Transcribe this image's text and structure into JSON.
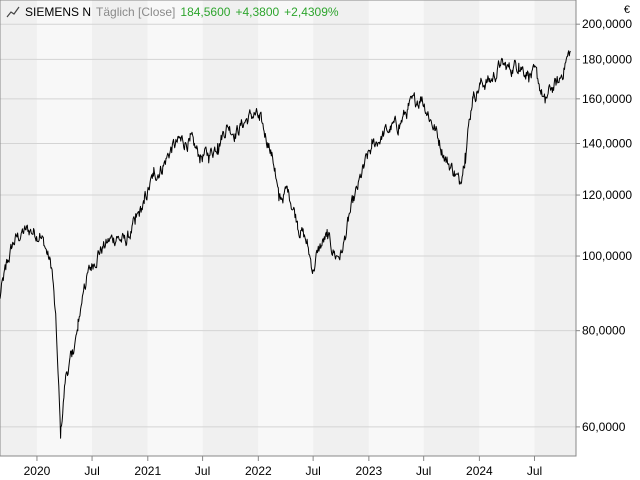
{
  "header": {
    "icon": "line-chart-icon",
    "instrument": "SIEMENS N",
    "interval": "Täglich [Close]",
    "last": "184,5600",
    "change": "+4,3800",
    "change_pct": "+2,4309%",
    "positive_color": "#2ea52e"
  },
  "currency": "€",
  "chart_data": {
    "type": "line",
    "title": "SIEMENS N",
    "subtitle": "Täglich [Close]",
    "y_scale": "log",
    "ylim": [
      55,
      215
    ],
    "xlim": [
      "2019-09-01",
      "2024-11-15"
    ],
    "grid": true,
    "y_ticks": [
      {
        "value": 60,
        "label": "60,0000"
      },
      {
        "value": 80,
        "label": "80,0000"
      },
      {
        "value": 100,
        "label": "100,0000"
      },
      {
        "value": 120,
        "label": "120,0000"
      },
      {
        "value": 140,
        "label": "140,0000"
      },
      {
        "value": 160,
        "label": "160,0000"
      },
      {
        "value": 180,
        "label": "180,0000"
      },
      {
        "value": 200,
        "label": "200,0000"
      }
    ],
    "x_ticks": [
      {
        "date": "2020-01-01",
        "label": "2020"
      },
      {
        "date": "2020-07-01",
        "label": "Jul"
      },
      {
        "date": "2021-01-01",
        "label": "2021"
      },
      {
        "date": "2021-07-01",
        "label": "Jul"
      },
      {
        "date": "2022-01-01",
        "label": "2022"
      },
      {
        "date": "2022-07-01",
        "label": "Jul"
      },
      {
        "date": "2023-01-01",
        "label": "2023"
      },
      {
        "date": "2023-07-01",
        "label": "Jul"
      },
      {
        "date": "2024-01-01",
        "label": "2024"
      },
      {
        "date": "2024-07-01",
        "label": "Jul"
      }
    ],
    "series": [
      {
        "color": "#000000",
        "points": [
          [
            "2019-09-01",
            88
          ],
          [
            "2019-09-20",
            96
          ],
          [
            "2019-10-15",
            104
          ],
          [
            "2019-11-10",
            107
          ],
          [
            "2019-12-10",
            108
          ],
          [
            "2020-01-10",
            107
          ],
          [
            "2020-02-01",
            102
          ],
          [
            "2020-02-20",
            96
          ],
          [
            "2020-03-05",
            80
          ],
          [
            "2020-03-19",
            58
          ],
          [
            "2020-04-05",
            70
          ],
          [
            "2020-04-25",
            74
          ],
          [
            "2020-05-15",
            80
          ],
          [
            "2020-06-05",
            92
          ],
          [
            "2020-06-25",
            96
          ],
          [
            "2020-07-20",
            101
          ],
          [
            "2020-08-20",
            104
          ],
          [
            "2020-09-20",
            106
          ],
          [
            "2020-10-20",
            104
          ],
          [
            "2020-11-20",
            110
          ],
          [
            "2020-12-20",
            117
          ],
          [
            "2021-01-20",
            127
          ],
          [
            "2021-02-20",
            131
          ],
          [
            "2021-03-20",
            138
          ],
          [
            "2021-04-20",
            141
          ],
          [
            "2021-05-20",
            141
          ],
          [
            "2021-06-20",
            135
          ],
          [
            "2021-07-20",
            135
          ],
          [
            "2021-08-20",
            140
          ],
          [
            "2021-09-20",
            148
          ],
          [
            "2021-10-20",
            145
          ],
          [
            "2021-11-20",
            150
          ],
          [
            "2021-12-20",
            153
          ],
          [
            "2022-01-05",
            150
          ],
          [
            "2022-02-05",
            140
          ],
          [
            "2022-02-25",
            130
          ],
          [
            "2022-03-10",
            118
          ],
          [
            "2022-04-10",
            122
          ],
          [
            "2022-05-10",
            111
          ],
          [
            "2022-06-10",
            104
          ],
          [
            "2022-07-01",
            96
          ],
          [
            "2022-07-15",
            101
          ],
          [
            "2022-08-15",
            106
          ],
          [
            "2022-09-15",
            100
          ],
          [
            "2022-10-05",
            101
          ],
          [
            "2022-10-25",
            111
          ],
          [
            "2022-11-25",
            122
          ],
          [
            "2022-12-15",
            130
          ],
          [
            "2023-01-10",
            138
          ],
          [
            "2023-02-10",
            143
          ],
          [
            "2023-03-10",
            146
          ],
          [
            "2023-04-10",
            148
          ],
          [
            "2023-05-10",
            155
          ],
          [
            "2023-06-10",
            159
          ],
          [
            "2023-06-25",
            161
          ],
          [
            "2023-07-15",
            154
          ],
          [
            "2023-08-15",
            144
          ],
          [
            "2023-09-15",
            133
          ],
          [
            "2023-10-10",
            129
          ],
          [
            "2023-10-27",
            124
          ],
          [
            "2023-11-15",
            136
          ],
          [
            "2023-12-10",
            161
          ],
          [
            "2024-01-10",
            168
          ],
          [
            "2024-02-10",
            169
          ],
          [
            "2024-03-10",
            177
          ],
          [
            "2024-04-10",
            175
          ],
          [
            "2024-05-10",
            178
          ],
          [
            "2024-06-10",
            173
          ],
          [
            "2024-07-10",
            170
          ],
          [
            "2024-08-05",
            158
          ],
          [
            "2024-08-25",
            165
          ],
          [
            "2024-09-20",
            168
          ],
          [
            "2024-10-10",
            178
          ],
          [
            "2024-10-28",
            184.56
          ]
        ]
      }
    ]
  }
}
